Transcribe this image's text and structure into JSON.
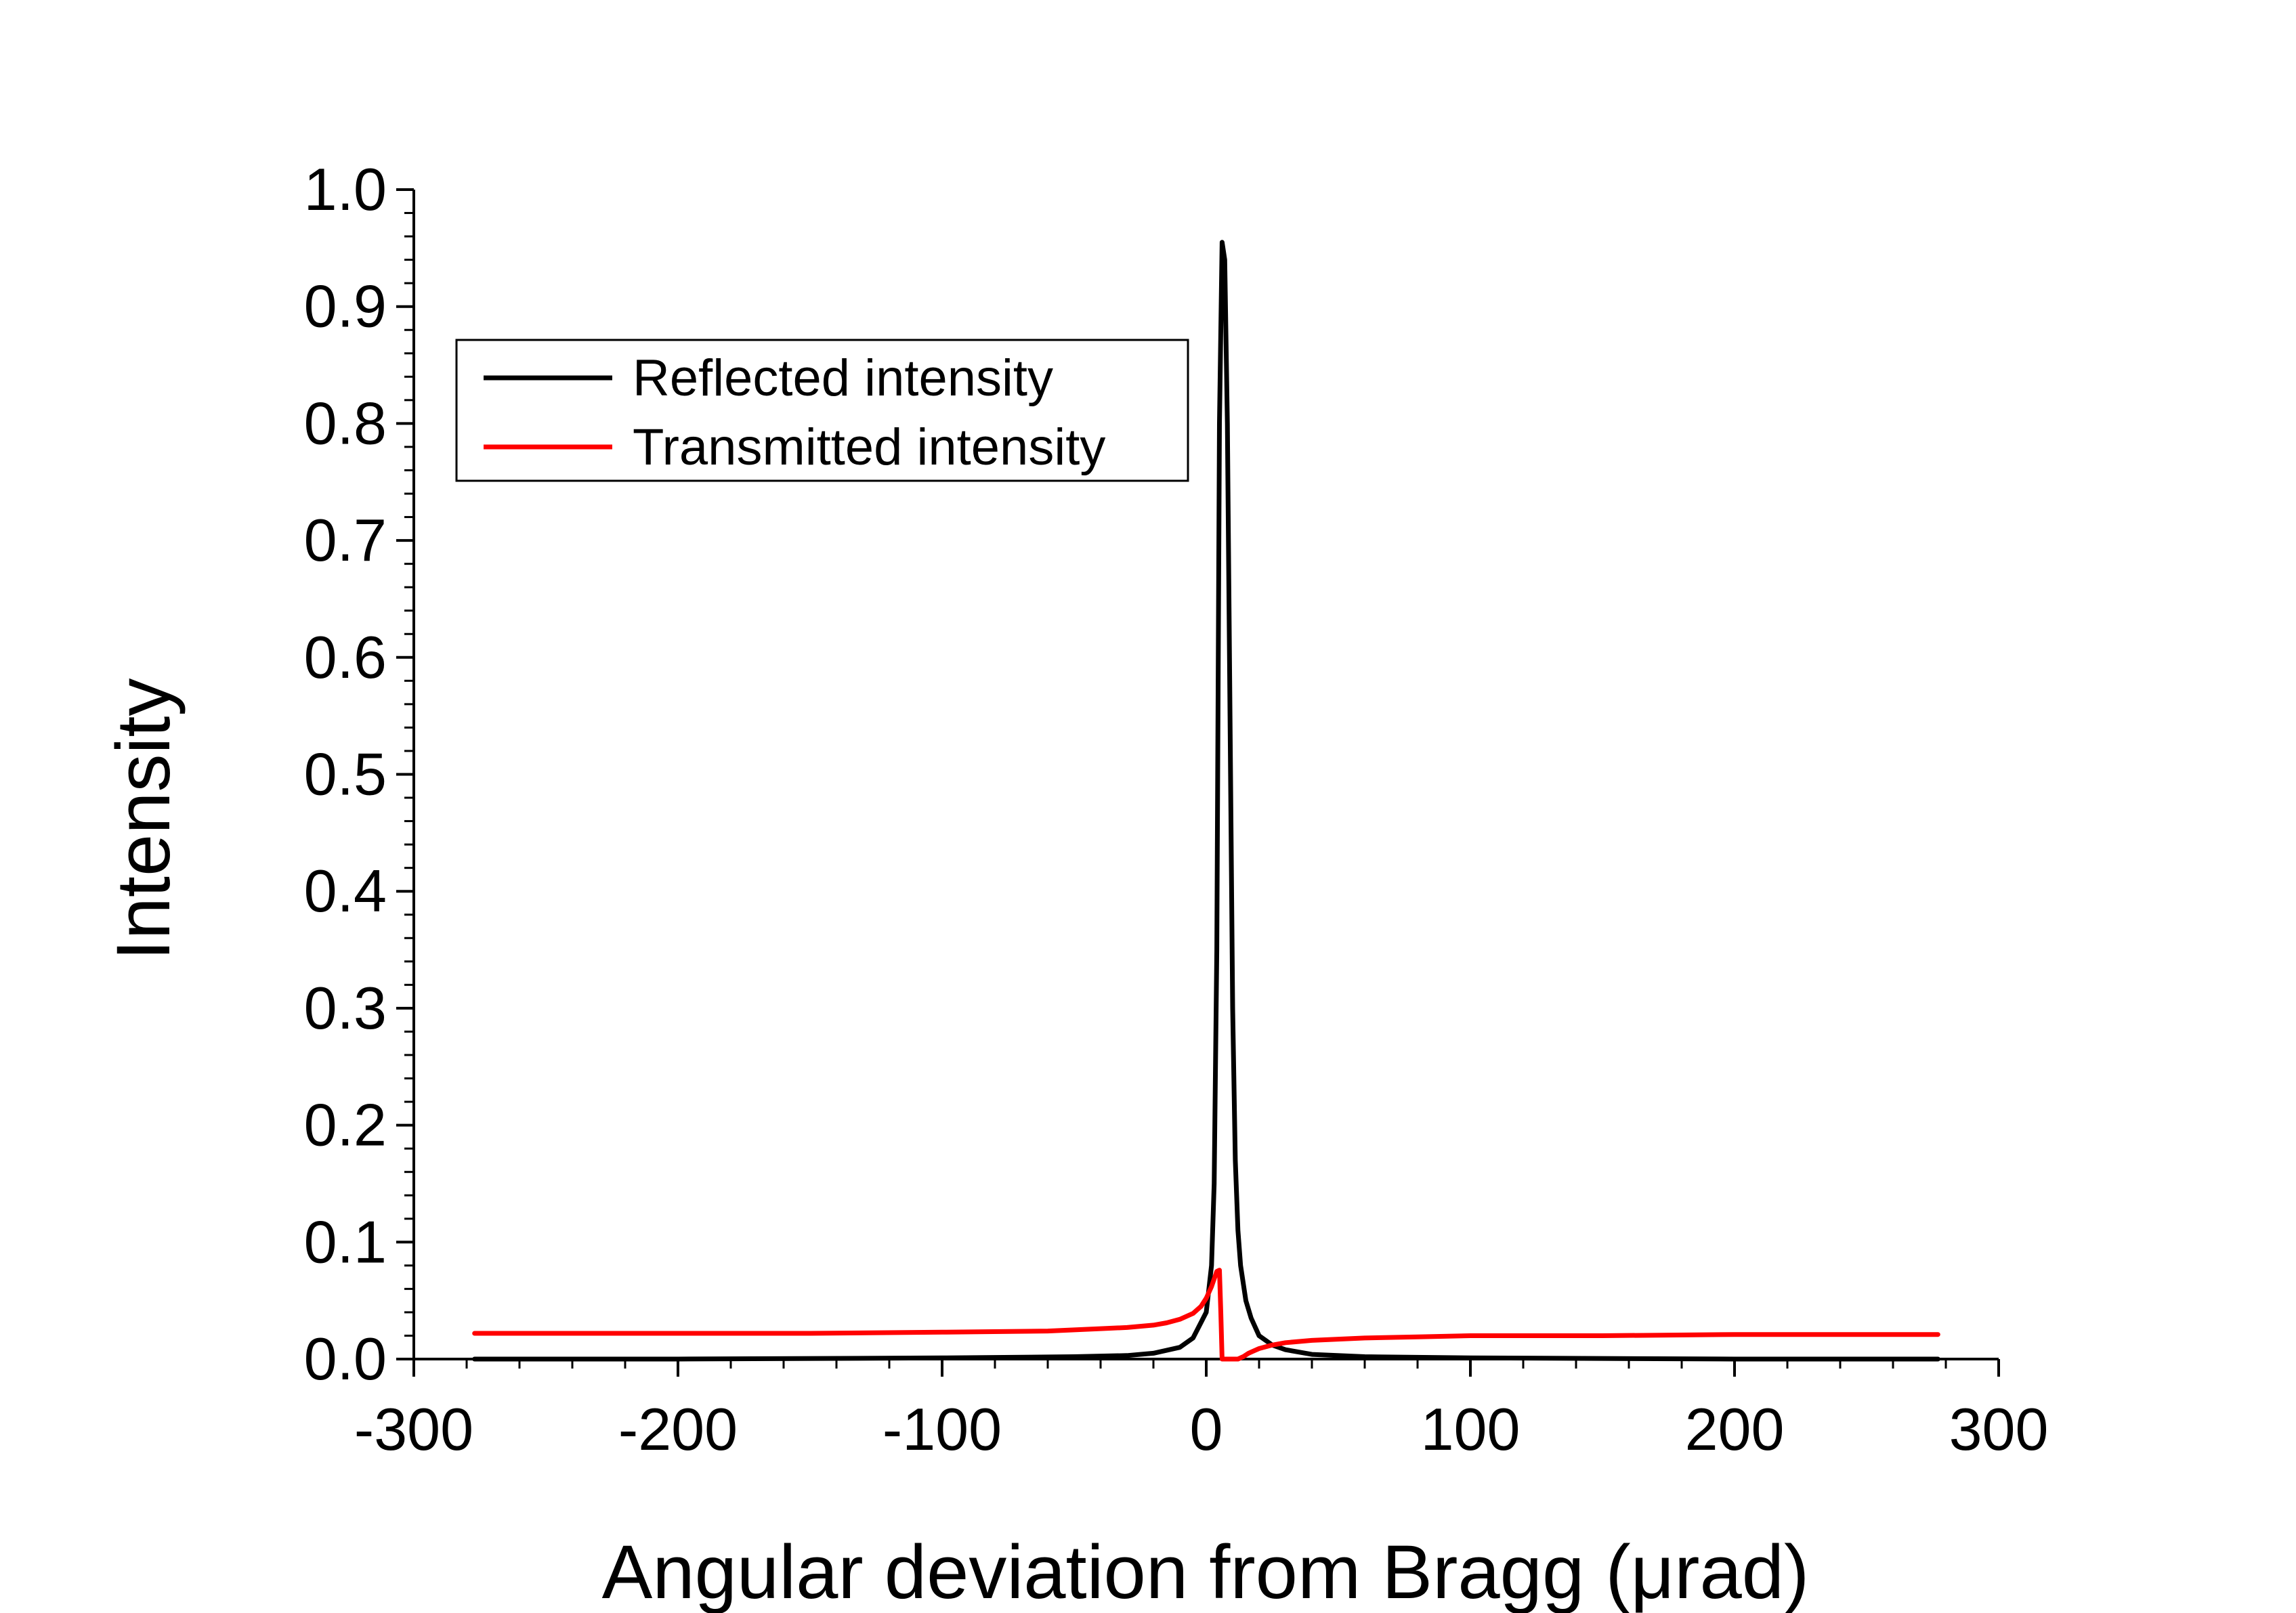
{
  "chart_data": {
    "type": "line",
    "title": "",
    "xlabel": "Angular deviation from Bragg (μrad)",
    "ylabel": "Intensity",
    "xlim": [
      -300,
      300
    ],
    "ylim": [
      0.0,
      1.0
    ],
    "x_ticks": [
      -300,
      -200,
      -100,
      0,
      100,
      200,
      300
    ],
    "x_tick_labels": [
      "-300",
      "-200",
      "-100",
      "0",
      "100",
      "200",
      "300"
    ],
    "y_ticks": [
      0.0,
      0.1,
      0.2,
      0.3,
      0.4,
      0.5,
      0.6,
      0.7,
      0.8,
      0.9,
      1.0
    ],
    "y_tick_labels": [
      "0.0",
      "0.1",
      "0.2",
      "0.3",
      "0.4",
      "0.5",
      "0.6",
      "0.7",
      "0.8",
      "0.9",
      "1.0"
    ],
    "grid": false,
    "legend_position": "top-left",
    "series": [
      {
        "name": "Reflected intensity",
        "color": "#000000",
        "x": [
          -277,
          -200,
          -100,
          -50,
          -30,
          -20,
          -10,
          -5,
          0,
          2,
          3,
          4,
          5,
          6,
          7,
          8,
          9,
          10,
          11,
          12,
          13,
          15,
          17,
          20,
          25,
          30,
          40,
          60,
          100,
          200,
          277
        ],
        "y": [
          0.0,
          0.0,
          0.001,
          0.002,
          0.003,
          0.005,
          0.01,
          0.018,
          0.04,
          0.08,
          0.15,
          0.35,
          0.8,
          0.955,
          0.94,
          0.8,
          0.55,
          0.3,
          0.17,
          0.11,
          0.08,
          0.05,
          0.035,
          0.02,
          0.012,
          0.008,
          0.004,
          0.002,
          0.001,
          0.0,
          0.0
        ]
      },
      {
        "name": "Transmitted intensity",
        "color": "#ff0000",
        "x": [
          -277,
          -200,
          -150,
          -100,
          -60,
          -40,
          -30,
          -20,
          -15,
          -10,
          -5,
          -2,
          0,
          2,
          4,
          5,
          5.5,
          6,
          8,
          10,
          12,
          14,
          16,
          18,
          20,
          25,
          30,
          40,
          60,
          80,
          100,
          150,
          200,
          277
        ],
        "y": [
          0.022,
          0.022,
          0.022,
          0.023,
          0.024,
          0.026,
          0.027,
          0.029,
          0.031,
          0.034,
          0.039,
          0.045,
          0.052,
          0.062,
          0.075,
          0.076,
          0.04,
          0.0,
          0.0,
          0.0,
          0.0,
          0.002,
          0.005,
          0.007,
          0.009,
          0.012,
          0.014,
          0.016,
          0.018,
          0.019,
          0.02,
          0.02,
          0.021,
          0.021
        ]
      }
    ]
  }
}
